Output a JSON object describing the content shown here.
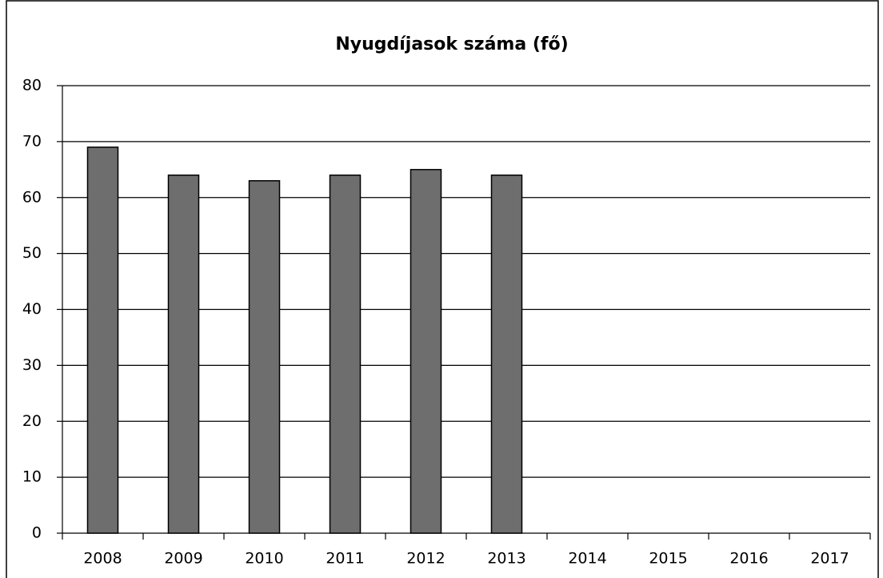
{
  "chart_data": {
    "type": "bar",
    "title": "Nyugdíjasok száma (fő)",
    "categories": [
      "2008",
      "2009",
      "2010",
      "2011",
      "2012",
      "2013",
      "2014",
      "2015",
      "2016",
      "2017"
    ],
    "values": [
      69,
      64,
      63,
      64,
      65,
      64,
      null,
      null,
      null,
      null
    ],
    "color": "#6e6e6e",
    "ylim": [
      0,
      80
    ],
    "yticks": [
      0,
      10,
      20,
      30,
      40,
      50,
      60,
      70,
      80
    ],
    "grid": true
  }
}
